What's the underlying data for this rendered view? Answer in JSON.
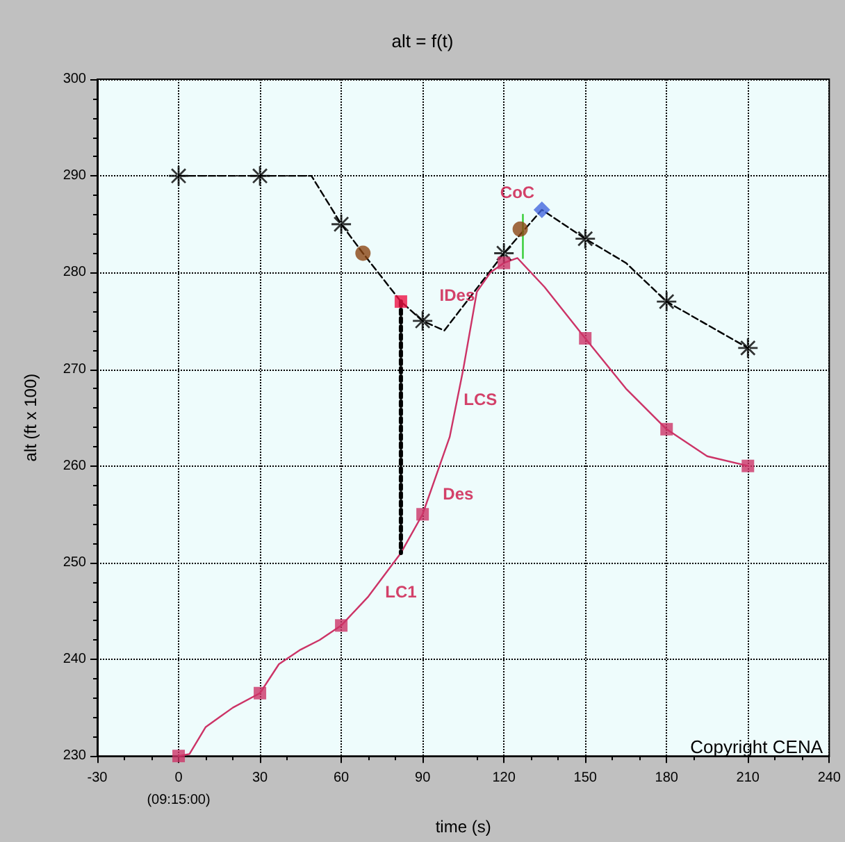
{
  "chart_data": {
    "type": "line",
    "title": "alt = f(t)",
    "xlabel": "time (s)",
    "ylabel": "alt (ft x 100)",
    "xlim": [
      -30,
      240
    ],
    "xticks": [
      -30,
      {
        "value": 0,
        "label": "0\n(09:15:00)"
      },
      30,
      60,
      90,
      120,
      150,
      180,
      210,
      240
    ],
    "ylim": [
      230,
      300
    ],
    "yticks": [
      230,
      240,
      250,
      260,
      270,
      280,
      290,
      300
    ],
    "grid": true,
    "series": [
      {
        "type": "line",
        "color": "#000000",
        "line_style": "dashed",
        "marker": "none",
        "x": [
          0,
          30,
          49,
          60,
          68,
          82,
          90,
          98,
          120,
          134,
          150,
          165,
          180,
          210
        ],
        "values": [
          290,
          290,
          290,
          285,
          282,
          277,
          275,
          274,
          282,
          286.5,
          283.5,
          281,
          277,
          272.2
        ]
      },
      {
        "type": "scatter",
        "color": "#000000",
        "marker": "star",
        "x": [
          0,
          30,
          60,
          90,
          120,
          150,
          180,
          210
        ],
        "values": [
          290,
          290,
          285,
          275,
          282,
          283.5,
          277,
          272.2
        ]
      },
      {
        "type": "line",
        "color": "#cc3366",
        "line_style": "solid",
        "marker": "none",
        "x": [
          0,
          4,
          10,
          15,
          20,
          30,
          37,
          45,
          52,
          60,
          70,
          82,
          90,
          100,
          105,
          110,
          115,
          120,
          125,
          135,
          150,
          165,
          180,
          195,
          210
        ],
        "values": [
          230,
          230.2,
          233,
          234,
          235,
          236.5,
          239.5,
          241,
          242,
          243.5,
          246.5,
          251,
          255,
          263,
          270,
          278,
          280,
          281,
          281.5,
          278.5,
          273.2,
          268,
          263.8,
          261,
          260
        ]
      },
      {
        "type": "scatter",
        "color": "#cc3366",
        "marker": "square",
        "x": [
          0,
          30,
          60,
          90,
          120,
          150,
          180,
          210
        ],
        "values": [
          230,
          236.5,
          243.5,
          255,
          281,
          273.2,
          263.8,
          260
        ]
      },
      {
        "type": "line",
        "color": "#000000",
        "line_style": "dotted",
        "marker": "none",
        "x": [
          82,
          82
        ],
        "values": [
          277,
          251
        ]
      },
      {
        "type": "line",
        "color": "#33cc33",
        "line_style": "solid",
        "marker": "none",
        "x": [
          127,
          127
        ],
        "values": [
          281.5,
          286
        ]
      },
      {
        "type": "scatter",
        "color": "#ee1144",
        "marker": "square",
        "x": [
          82
        ],
        "values": [
          277
        ]
      },
      {
        "type": "scatter",
        "color": "#8b4513",
        "marker": "circle",
        "x": [
          68,
          126
        ],
        "values": [
          282,
          284.5
        ]
      },
      {
        "type": "scatter",
        "color": "#4466dd",
        "marker": "diamond",
        "x": [
          134
        ],
        "values": [
          286.5
        ]
      }
    ],
    "annotations": [
      {
        "text": "LC1",
        "x": 82,
        "y": 251
      },
      {
        "text": "LCS",
        "x": 98,
        "y": 261.4
      },
      {
        "text": "Des",
        "x": 98,
        "y": 261.4
      },
      {
        "text": "IDes",
        "x": 112,
        "y": 278.8
      },
      {
        "text": "CoC",
        "x": 127,
        "y": 286
      },
      "Copyright CENA"
    ]
  }
}
